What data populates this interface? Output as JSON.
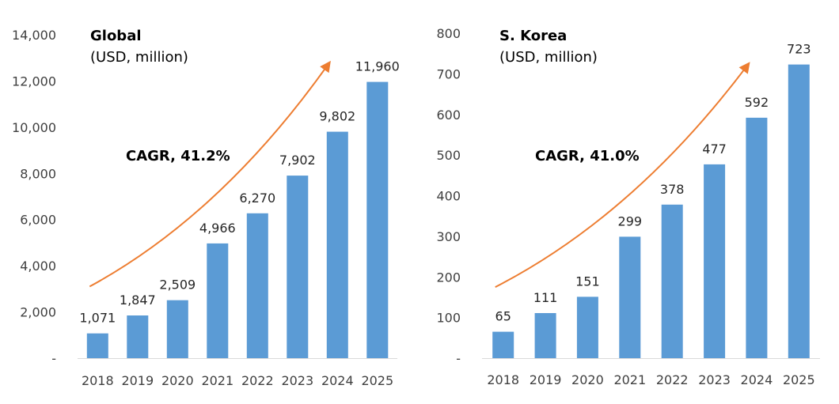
{
  "colors": {
    "bar": "#5b9bd5",
    "arrow": "#ed7d31",
    "axis": "#d9d9d9"
  },
  "chart_data": [
    {
      "type": "bar",
      "title": "Global",
      "subtitle": "(USD, million)",
      "annotation": "CAGR, 41.2%",
      "categories": [
        "2018",
        "2019",
        "2020",
        "2021",
        "2022",
        "2023",
        "2024",
        "2025"
      ],
      "values": [
        1071,
        1847,
        2509,
        4966,
        6270,
        7902,
        9802,
        11960
      ],
      "value_labels": [
        "1,071",
        "1,847",
        "2,509",
        "4,966",
        "6,270",
        "7,902",
        "9,802",
        "11,960"
      ],
      "ylim": [
        0,
        14000
      ],
      "yticks": [
        0,
        2000,
        4000,
        6000,
        8000,
        10000,
        12000,
        14000
      ],
      "ytick_labels": [
        "-",
        "2,000",
        "4,000",
        "6,000",
        "8,000",
        "10,000",
        "12,000",
        "14,000"
      ],
      "trend_arrow": {
        "from": 3100,
        "to": 12800,
        "start_category": "2018",
        "end_category": "2024"
      },
      "grid": false,
      "legend": "none"
    },
    {
      "type": "bar",
      "title": "S. Korea",
      "subtitle": "(USD, million)",
      "annotation": "CAGR, 41.0%",
      "categories": [
        "2018",
        "2019",
        "2020",
        "2021",
        "2022",
        "2023",
        "2024",
        "2025"
      ],
      "values": [
        65,
        111,
        151,
        299,
        378,
        477,
        592,
        723
      ],
      "value_labels": [
        "65",
        "111",
        "151",
        "299",
        "378",
        "477",
        "592",
        "723"
      ],
      "ylim": [
        0,
        800
      ],
      "yticks": [
        0,
        100,
        200,
        300,
        400,
        500,
        600,
        700,
        800
      ],
      "ytick_labels": [
        "-",
        "100",
        "200",
        "300",
        "400",
        "500",
        "600",
        "700",
        "800"
      ],
      "trend_arrow": {
        "from": 175,
        "to": 725,
        "start_category": "2018",
        "end_category": "2024"
      },
      "grid": false,
      "legend": "none"
    }
  ]
}
